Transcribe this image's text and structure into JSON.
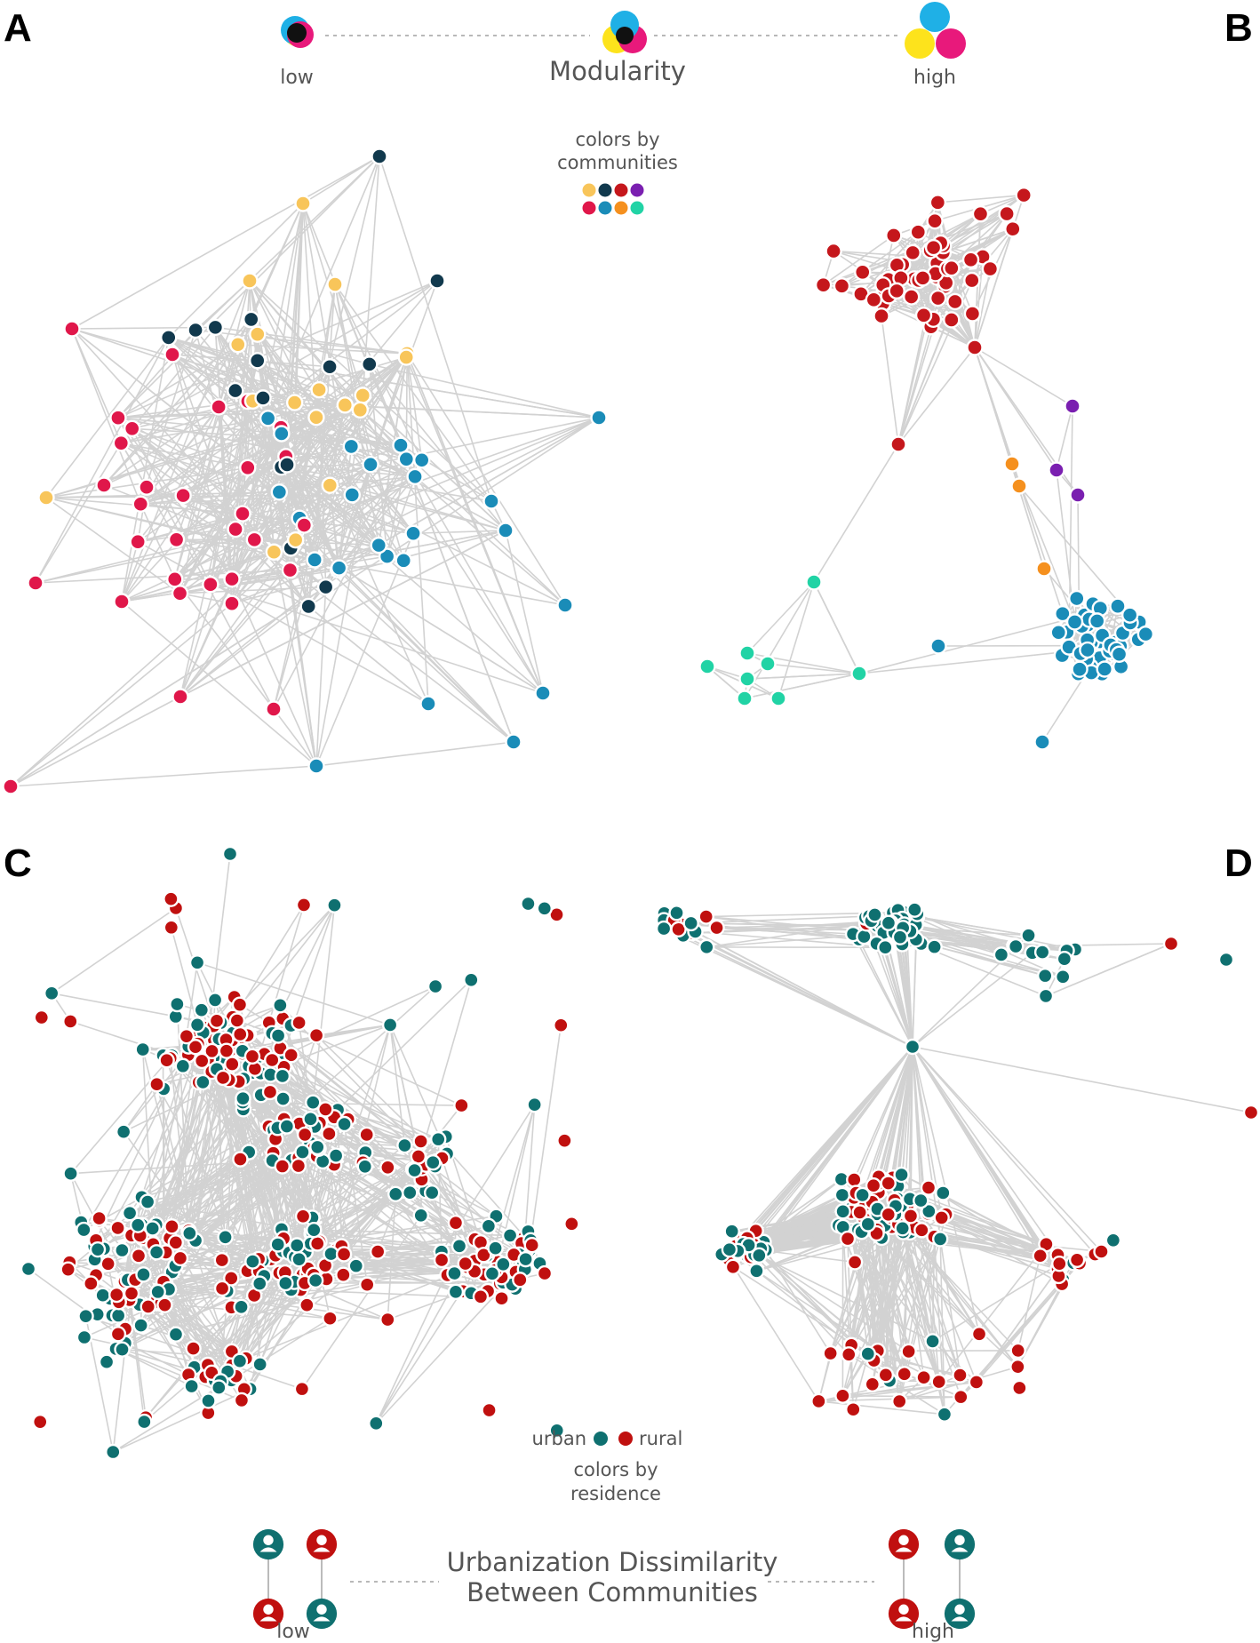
{
  "panels": {
    "a": {
      "letter": "A"
    },
    "b": {
      "letter": "B"
    },
    "c": {
      "letter": "C"
    },
    "d": {
      "letter": "D"
    }
  },
  "modularity_scale": {
    "title": "Modularity",
    "low_label": "low",
    "high_label": "high"
  },
  "communities_legend": {
    "line1": "colors by",
    "line2": "communities",
    "colors": [
      "#f8c55a",
      "#11394d",
      "#c5171c",
      "#7a1fb0",
      "#e0174a",
      "#1a8cb8",
      "#f5901e",
      "#21d3a5"
    ]
  },
  "residence_legend": {
    "urban_label": "urban",
    "rural_label": "rural",
    "line1": "colors by",
    "line2": "residence",
    "urban_color": "#0f7070",
    "rural_color": "#c0100f"
  },
  "urbanization_scale": {
    "title_line1": "Urbanization Dissimilarity",
    "title_line2": "Between Communities",
    "low_label": "low",
    "high_label": "high"
  },
  "colors": {
    "cyan": "#1fb0e6",
    "yellow": "#fde31c",
    "magenta": "#e8197b",
    "edge": "#d2d2d2",
    "text": "#555555"
  }
}
